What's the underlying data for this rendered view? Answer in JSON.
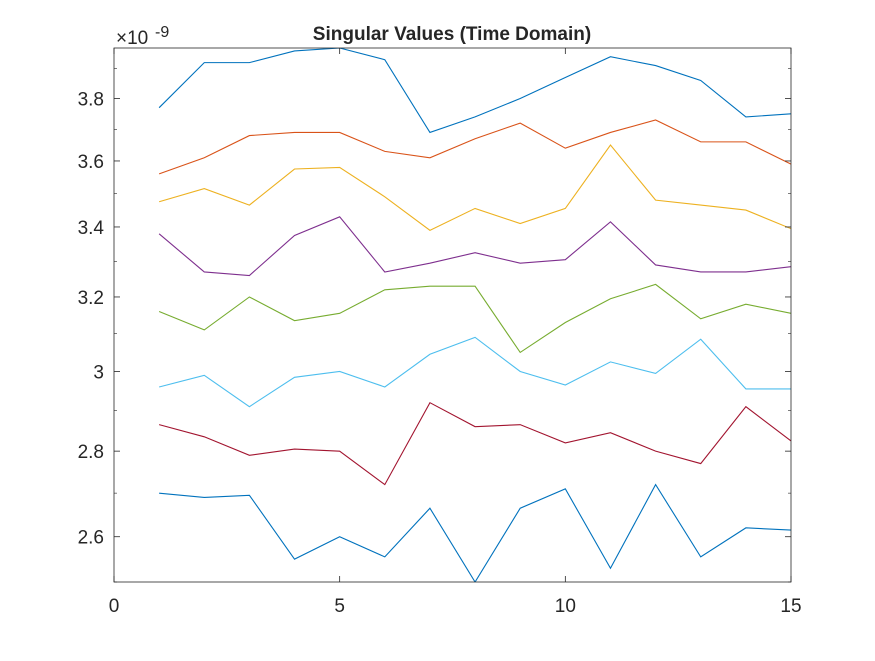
{
  "chart_data": {
    "type": "line",
    "title": "Singular Values (Time Domain)",
    "xlabel": "",
    "ylabel": "",
    "exponent_base": "×10",
    "exponent_power": "-9",
    "xlim": [
      0,
      15
    ],
    "ylim": [
      2.5,
      3.97
    ],
    "y_scale": "log",
    "grid": false,
    "legend": "none",
    "x_ticks": [
      0,
      5,
      10,
      15
    ],
    "x_tick_labels": [
      "0",
      "5",
      "10",
      "15"
    ],
    "y_ticks": [
      2.6,
      2.8,
      3.0,
      3.2,
      3.4,
      3.6,
      3.8
    ],
    "y_tick_labels": [
      "2.6",
      "2.8",
      "3",
      "3.2",
      "3.4",
      "3.6",
      "3.8"
    ],
    "x": [
      1,
      2,
      3,
      4,
      5,
      6,
      7,
      8,
      9,
      10,
      11,
      12,
      13,
      14,
      15
    ],
    "series": [
      {
        "color": "#0072BD",
        "values": [
          3.77,
          3.92,
          3.92,
          3.96,
          3.97,
          3.93,
          3.69,
          3.74,
          3.8,
          3.87,
          3.94,
          3.91,
          3.86,
          3.74,
          3.75
        ]
      },
      {
        "color": "#D95319",
        "values": [
          3.56,
          3.61,
          3.68,
          3.69,
          3.69,
          3.63,
          3.61,
          3.67,
          3.72,
          3.64,
          3.69,
          3.73,
          3.66,
          3.66,
          3.59
        ]
      },
      {
        "color": "#EDB120",
        "values": [
          3.475,
          3.515,
          3.465,
          3.575,
          3.58,
          3.49,
          3.39,
          3.455,
          3.41,
          3.455,
          3.65,
          3.48,
          3.465,
          3.45,
          3.395
        ]
      },
      {
        "color": "#7E2F8E",
        "values": [
          3.38,
          3.27,
          3.26,
          3.375,
          3.43,
          3.27,
          3.295,
          3.325,
          3.295,
          3.305,
          3.415,
          3.29,
          3.27,
          3.27,
          3.285
        ]
      },
      {
        "color": "#77AC30",
        "values": [
          3.16,
          3.11,
          3.2,
          3.135,
          3.155,
          3.22,
          3.23,
          3.23,
          3.05,
          3.13,
          3.195,
          3.235,
          3.14,
          3.18,
          3.155
        ]
      },
      {
        "color": "#4DBEEE",
        "values": [
          2.96,
          2.99,
          2.91,
          2.985,
          3.0,
          2.96,
          3.045,
          3.09,
          3.0,
          2.965,
          3.025,
          2.995,
          3.085,
          2.955,
          2.955
        ]
      },
      {
        "color": "#A2142F",
        "values": [
          2.865,
          2.835,
          2.79,
          2.805,
          2.8,
          2.72,
          2.92,
          2.86,
          2.865,
          2.82,
          2.845,
          2.8,
          2.77,
          2.91,
          2.825
        ]
      },
      {
        "color": "#0072BD",
        "values": [
          2.7,
          2.69,
          2.695,
          2.55,
          2.6,
          2.555,
          2.665,
          2.5,
          2.665,
          2.71,
          2.53,
          2.72,
          2.555,
          2.62,
          2.615
        ]
      }
    ]
  }
}
